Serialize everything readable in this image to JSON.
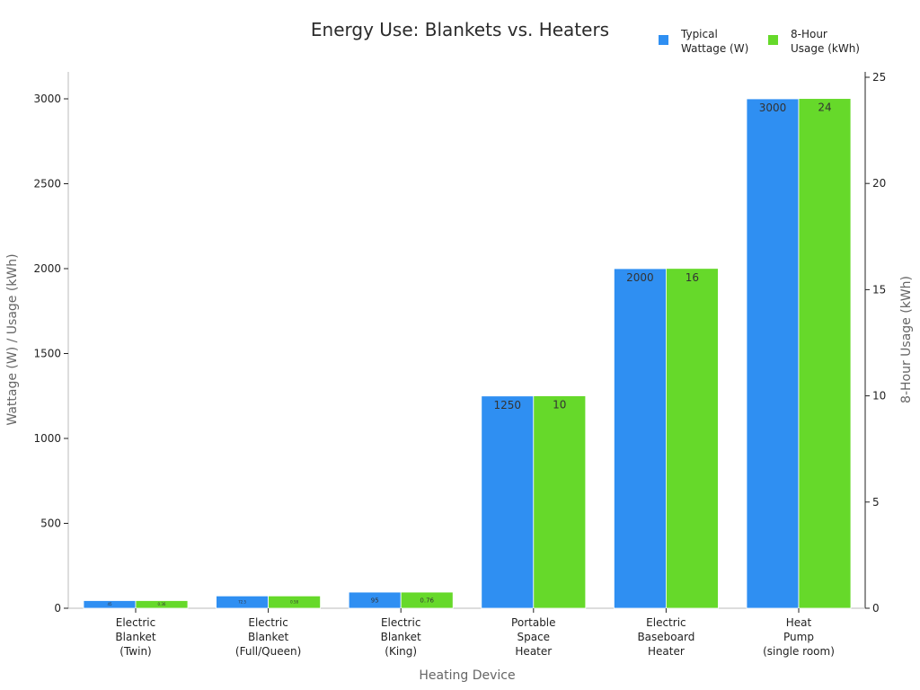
{
  "chart_data": {
    "type": "bar",
    "title": "Energy Use: Blankets vs. Heaters",
    "xlabel": "Heating Device",
    "ylabel": "Wattage (W) / Usage (kWh)",
    "y2label": "8-Hour Usage (kWh)",
    "categories": [
      [
        "Electric",
        "Blanket",
        "(Twin)"
      ],
      [
        "Electric",
        "Blanket",
        "(Full/Queen)"
      ],
      [
        "Electric",
        "Blanket",
        "(King)"
      ],
      [
        "Portable",
        "Space",
        "Heater"
      ],
      [
        "Electric",
        "Baseboard",
        "Heater"
      ],
      [
        "Heat",
        "Pump",
        "(single room)"
      ]
    ],
    "series": [
      {
        "name": "Typical\nWattage (W)",
        "axis": "left",
        "color": "#2f8ff2",
        "values": [
          45,
          72.5,
          95,
          1250,
          2000,
          3000
        ],
        "labels": [
          "45",
          "72.5",
          "95",
          "1250",
          "2000",
          "3000"
        ]
      },
      {
        "name": "8-Hour\nUsage (kWh)",
        "axis": "right",
        "color": "#66d92a",
        "values": [
          0.36,
          0.58,
          0.76,
          10,
          16,
          24
        ],
        "labels": [
          "0.36",
          "0.58",
          "0.76",
          "10",
          "16",
          "24"
        ]
      }
    ],
    "ylim": [
      0,
      3200
    ],
    "yticks": [
      0,
      500,
      1000,
      1500,
      2000,
      2500,
      3000
    ],
    "y2lim": [
      0,
      25
    ],
    "y2ticks": [
      0,
      5,
      10,
      15,
      20,
      25
    ],
    "legend": "top-right",
    "grid": false
  }
}
